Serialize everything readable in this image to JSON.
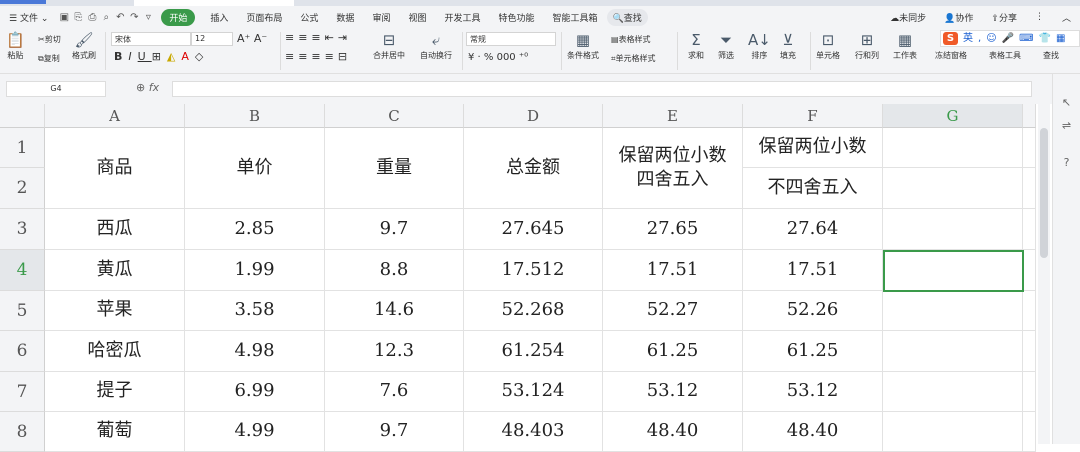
{
  "menu": {
    "file": "文件",
    "tabs": [
      "开始",
      "插入",
      "页面布局",
      "公式",
      "数据",
      "审阅",
      "视图",
      "开发工具",
      "特色功能",
      "智能工具箱"
    ],
    "search": "查找",
    "right": [
      "未同步",
      "协作",
      "分享"
    ]
  },
  "ribbon": {
    "paste": "粘贴",
    "cut": "剪切",
    "copy": "复制",
    "format_painter": "格式刷",
    "font": "宋体",
    "size": "12",
    "merge": "合并居中",
    "wrap": "自动换行",
    "number_format": "常规",
    "cond_format": "条件格式",
    "table_style": "表格样式",
    "cell_style": "单元格样式",
    "sum": "求和",
    "filter": "筛选",
    "sort": "排序",
    "fill": "填充",
    "cells": "单元格",
    "rowcol": "行和列",
    "sheet": "工作表",
    "freeze": "冻结窗格",
    "table_tools": "表格工具",
    "find": "查找"
  },
  "ime": {
    "logo": "S",
    "mode": "英"
  },
  "formula": {
    "cell": "G4",
    "fx": "fx",
    "value": ""
  },
  "columns": [
    "A",
    "B",
    "C",
    "D",
    "E",
    "F",
    "G"
  ],
  "rows": [
    "1",
    "2",
    "3",
    "4",
    "5",
    "6",
    "7",
    "8"
  ],
  "headers": {
    "a": "商品",
    "b": "单价",
    "c": "重量",
    "d": "总金额",
    "e": "保留两位小数\n四舍五入",
    "f1": "保留两位小数",
    "f2": "不四舍五入"
  },
  "data": [
    [
      "西瓜",
      "2.85",
      "9.7",
      "27.645",
      "27.65",
      "27.64"
    ],
    [
      "黄瓜",
      "1.99",
      "8.8",
      "17.512",
      "17.51",
      "17.51"
    ],
    [
      "苹果",
      "3.58",
      "14.6",
      "52.268",
      "52.27",
      "52.26"
    ],
    [
      "哈密瓜",
      "4.98",
      "12.3",
      "61.254",
      "61.25",
      "61.25"
    ],
    [
      "提子",
      "6.99",
      "7.6",
      "53.124",
      "53.12",
      "53.12"
    ],
    [
      "葡萄",
      "4.99",
      "9.7",
      "48.403",
      "48.40",
      "48.40"
    ]
  ],
  "colors": {
    "accent": "#3a9a4a"
  }
}
